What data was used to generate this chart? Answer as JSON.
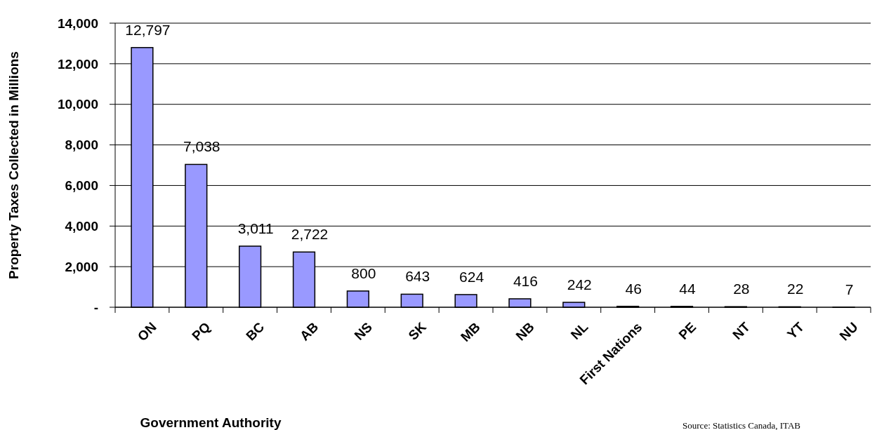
{
  "chart_data": {
    "type": "bar",
    "xlabel": "Government Authority",
    "ylabel": "Property Taxes Collected in Millions",
    "categories": [
      "ON",
      "PQ",
      "BC",
      "AB",
      "NS",
      "SK",
      "MB",
      "NB",
      "NL",
      "First Nations",
      "PE",
      "NT",
      "YT",
      "NU"
    ],
    "values": [
      12797,
      7038,
      3011,
      2722,
      800,
      643,
      624,
      416,
      242,
      46,
      44,
      28,
      22,
      7
    ],
    "color": "#9999ff",
    "grid": "y",
    "value_labels": [
      "12,797",
      "7,038",
      "3,011",
      "2,722",
      "800",
      "643",
      "624",
      "416",
      "242",
      "46",
      "44",
      "28",
      "22",
      "7"
    ],
    "ylim": [
      0,
      14000
    ],
    "yticks": [
      {
        "value": 0,
        "label": "-"
      },
      {
        "value": 2000,
        "label": "2,000"
      },
      {
        "value": 4000,
        "label": "4,000"
      },
      {
        "value": 6000,
        "label": "6,000"
      },
      {
        "value": 8000,
        "label": "8,000"
      },
      {
        "value": 10000,
        "label": "10,000"
      },
      {
        "value": 12000,
        "label": "12,000"
      },
      {
        "value": 14000,
        "label": "14,000"
      }
    ],
    "annotations": [
      "Source:  Statistics Canada, ITAB"
    ]
  }
}
